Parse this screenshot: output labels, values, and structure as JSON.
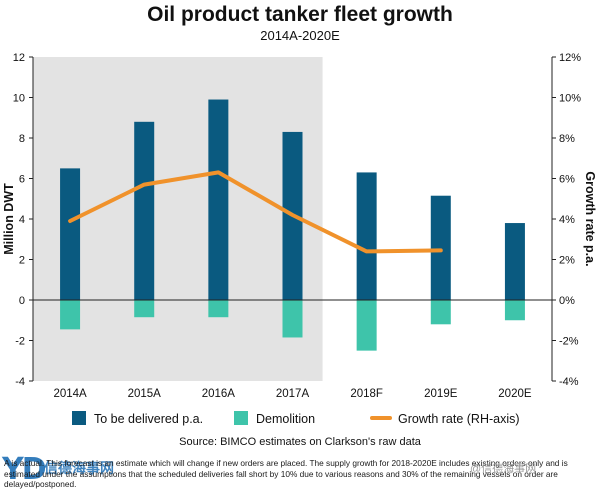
{
  "chart_data": {
    "type": "bar",
    "title": "Oil product tanker fleet growth",
    "subtitle": "2014A-2020E",
    "categories": [
      "2014A",
      "2015A",
      "2016A",
      "2017A",
      "2018F",
      "2019E",
      "2020E"
    ],
    "series": [
      {
        "name": "To be delivered p.a.",
        "type": "bar",
        "color": "#0a5a80",
        "values": [
          6.5,
          8.8,
          9.9,
          8.3,
          6.3,
          5.15,
          3.8
        ]
      },
      {
        "name": "Demolition",
        "type": "bar",
        "color": "#3ec4aa",
        "values": [
          -1.45,
          -0.85,
          -0.85,
          -1.85,
          -2.5,
          -1.2,
          -1.0
        ]
      },
      {
        "name": "Growth rate (RH-axis)",
        "type": "line",
        "axis": "right",
        "color": "#f0922b",
        "values": [
          3.9,
          5.7,
          6.3,
          4.2,
          2.4,
          2.45,
          null
        ]
      }
    ],
    "ylabel": "Million DWT",
    "ylabel_right": "Growth rate p.a.",
    "ylim": [
      -4,
      12
    ],
    "ylim_right": [
      -4,
      12
    ],
    "yticks": [
      "-4",
      "-2",
      "0",
      "2",
      "4",
      "6",
      "8",
      "10",
      "12"
    ],
    "yticks_right": [
      "-4%",
      "-2%",
      "0%",
      "2%",
      "4%",
      "6%",
      "8%",
      "10%",
      "12%"
    ],
    "shaded_region": {
      "from": "2014A",
      "to": "2017A",
      "color": "#e3e3e3"
    },
    "legend_position": "bottom",
    "grid": false,
    "source": "Source: BIMCO estimates on Clarkson's raw data"
  },
  "footnote": "A is actual. This forecast is an estimate which will change if new orders are placed. The supply growth for 2018-2020E includes existing orders only and is estimated under the assumptions that the scheduled deliveries fall short by 10% due to various reasons and 30% of the remaining vessels on order are delayed/postponed.",
  "watermark": {
    "logo": "YD",
    "logo_cn": "信德海事网",
    "right_text": "@信德海事网"
  }
}
